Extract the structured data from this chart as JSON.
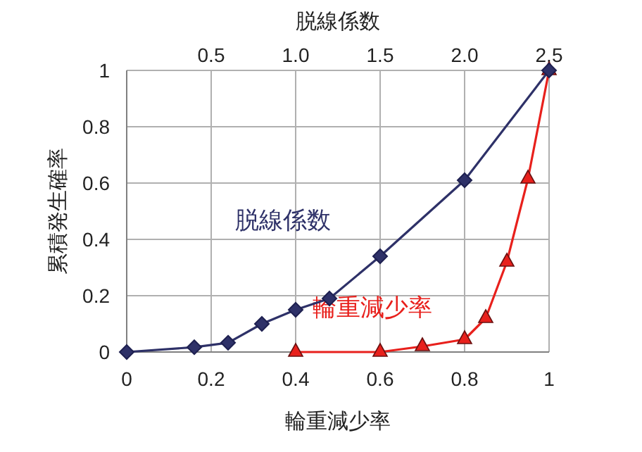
{
  "chart_data": {
    "type": "line",
    "xlabel": "輪重減少率",
    "ylabel": "累積発生確率",
    "x2label": "脱線係数",
    "xlim": [
      0,
      1
    ],
    "xticks": [
      0,
      0.2,
      0.4,
      0.6,
      0.8,
      1
    ],
    "x2lim": [
      0,
      2.5
    ],
    "x2ticks": [
      0.5,
      {
        "value": 1,
        "label": "1.0"
      },
      1.5,
      {
        "value": 2,
        "label": "2.0"
      },
      2.5
    ],
    "ylim": [
      0,
      1
    ],
    "yticks": [
      0,
      0.2,
      0.4,
      0.6,
      0.8,
      1
    ],
    "grid": true,
    "series": [
      {
        "name": "脱線係数",
        "color": "#2e3168",
        "axis": "x2",
        "marker": "diamond",
        "x": [
          0,
          0.4,
          0.6,
          0.8,
          1.0,
          1.2,
          1.5,
          2.0,
          2.5
        ],
        "values": [
          0,
          0.017,
          0.033,
          0.1,
          0.15,
          0.19,
          0.34,
          0.61,
          1.0
        ]
      },
      {
        "name": "輪重減少率",
        "color": "#e8201c",
        "marker": "triangle",
        "x": [
          0.4,
          0.6,
          0.7,
          0.8,
          0.85,
          0.9,
          0.95,
          1.0
        ],
        "values": [
          0,
          0,
          0.02,
          0.045,
          0.12,
          0.32,
          0.615,
          1.0
        ]
      }
    ]
  }
}
